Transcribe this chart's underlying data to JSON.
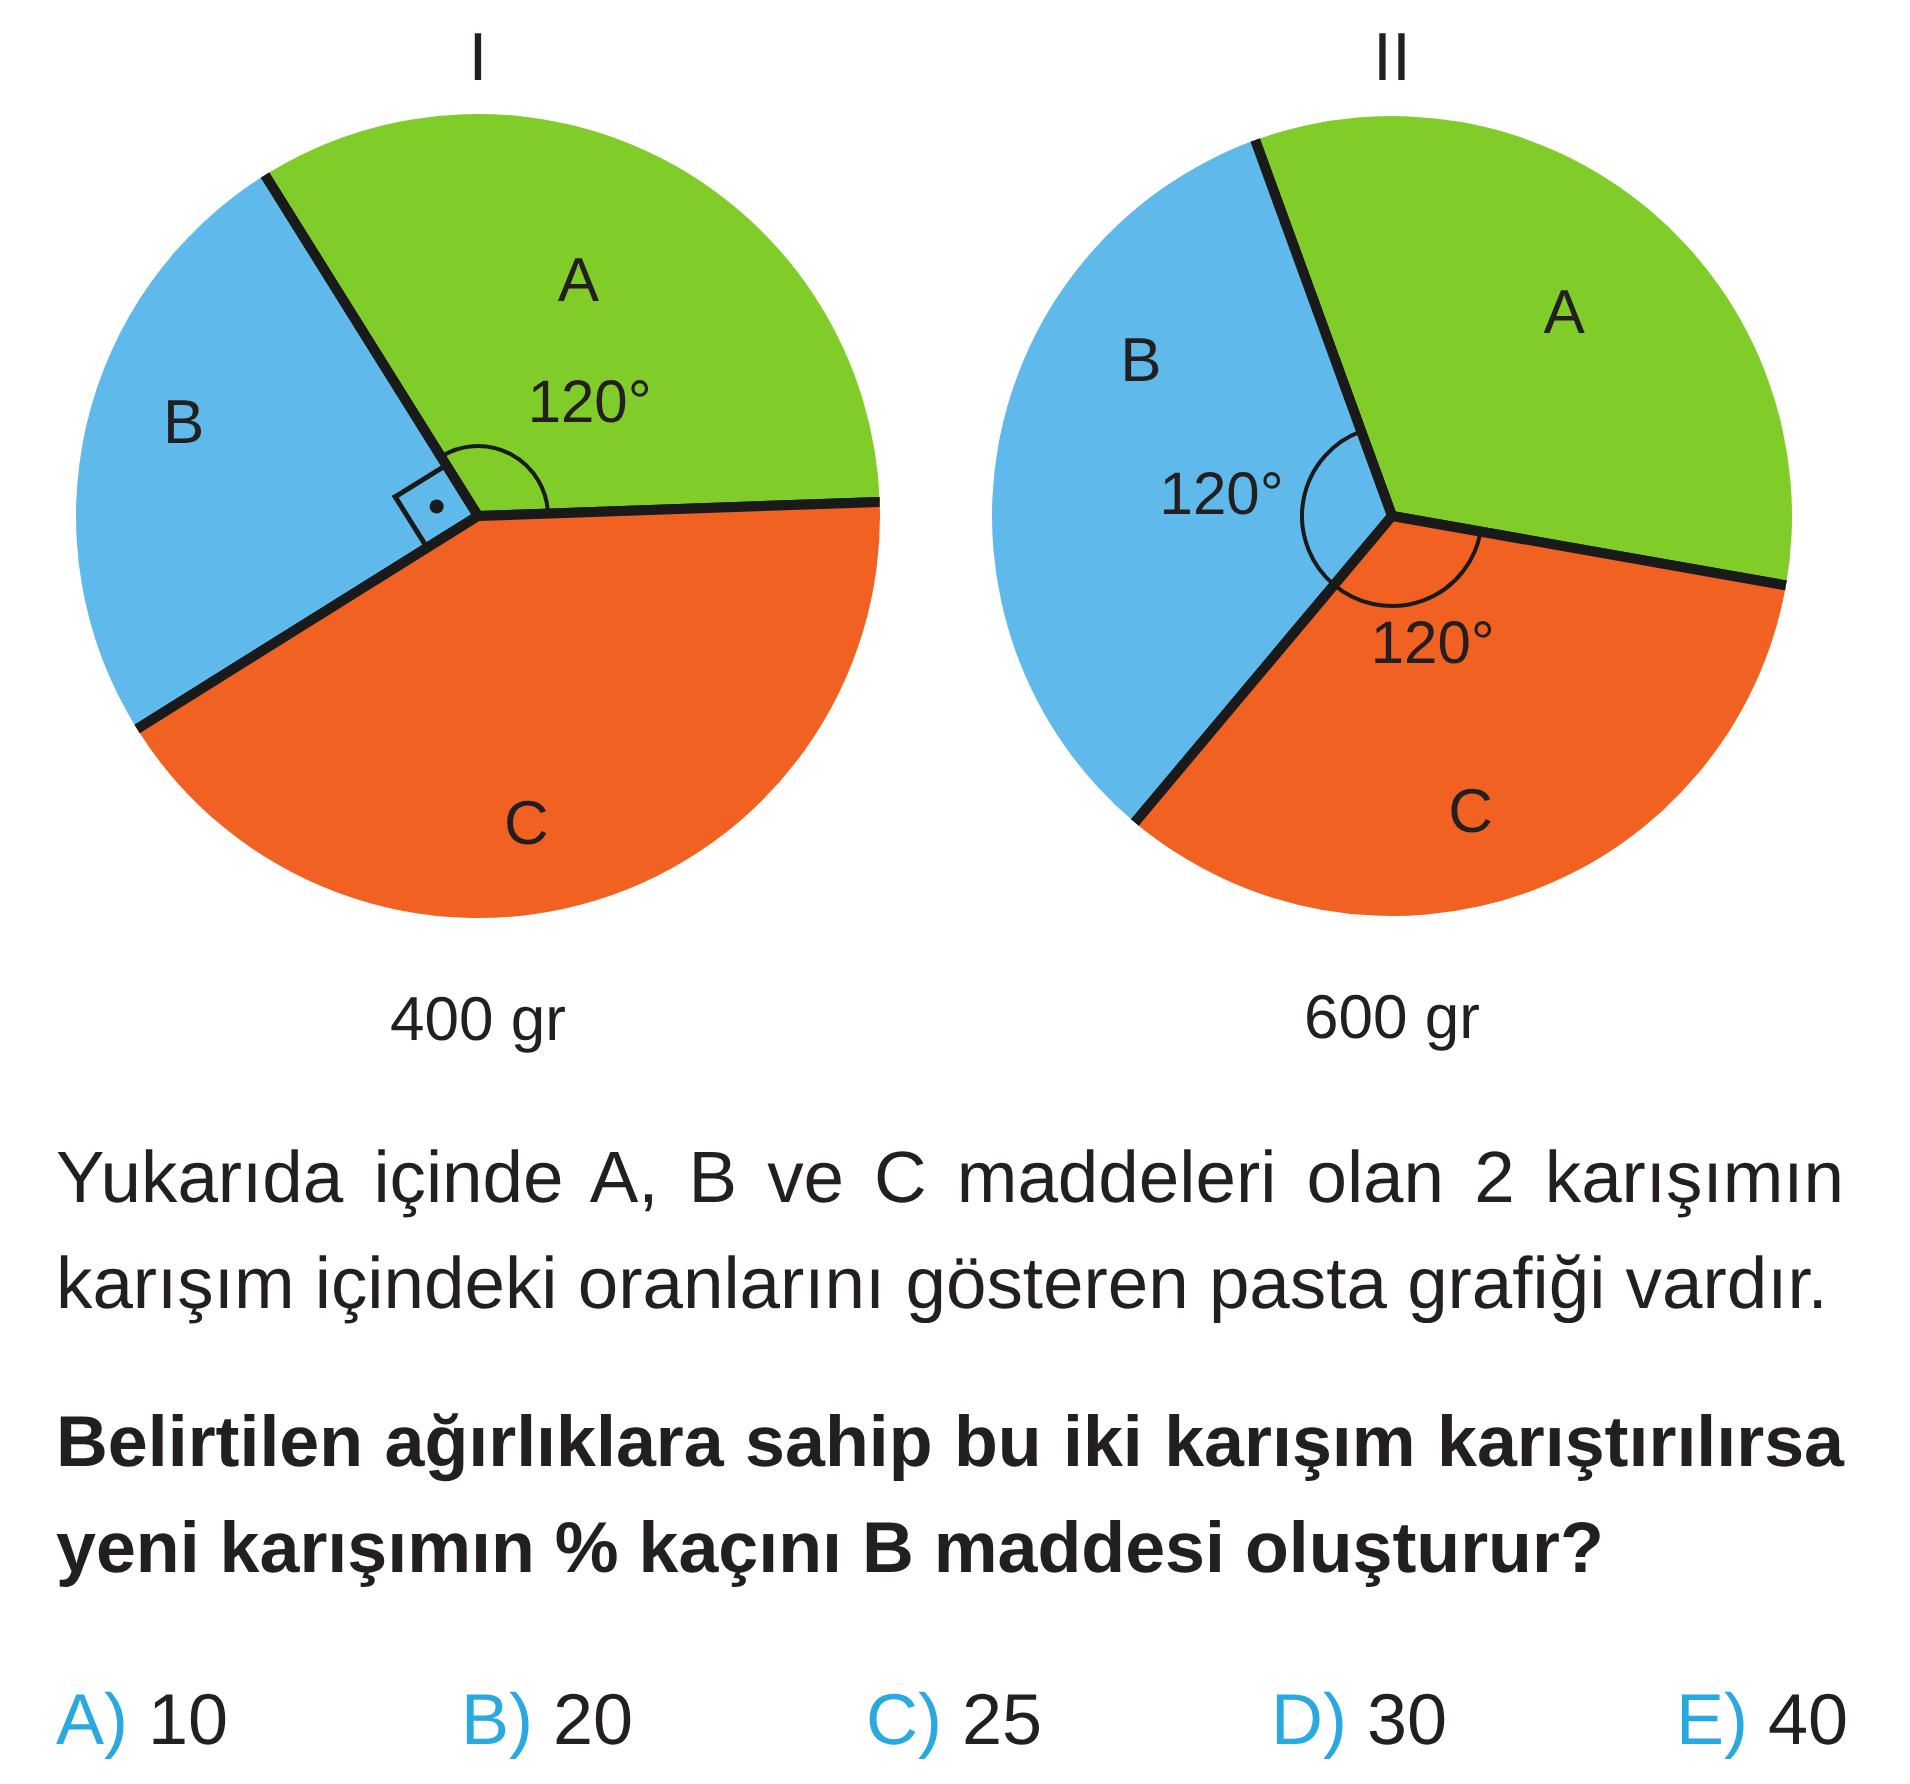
{
  "chart_data": [
    {
      "type": "pie",
      "title": "I",
      "categories": [
        "A",
        "B",
        "C"
      ],
      "values": [
        120,
        90,
        150
      ],
      "colors": [
        "#80cc28",
        "#5fb9ea",
        "#f16122"
      ],
      "value_labels": [
        "120°",
        null,
        null
      ],
      "annotations": [
        "400 gr"
      ]
    },
    {
      "type": "pie",
      "title": "II",
      "categories": [
        "A",
        "B",
        "C"
      ],
      "values": [
        120,
        120,
        120
      ],
      "colors": [
        "#80cc28",
        "#5fb9ea",
        "#f16122"
      ],
      "value_labels": [
        null,
        "120°",
        "120°"
      ],
      "annotations": [
        "600 gr"
      ]
    },
    {
      "type": "other",
      "annotations": [
        "Yukarıda içinde A, B ve C maddeleri olan 2 karışımın karışım içindeki oranlarını gösteren pasta grafiği vardır.",
        "Belirtilen ağırlıklara sahip bu iki karışım karıştırılırsa yeni karışımın % kaçını B maddesi oluşturur?",
        "A) 10",
        "B) 20",
        "C) 25",
        "D) 30",
        "E) 40"
      ]
    }
  ]
}
